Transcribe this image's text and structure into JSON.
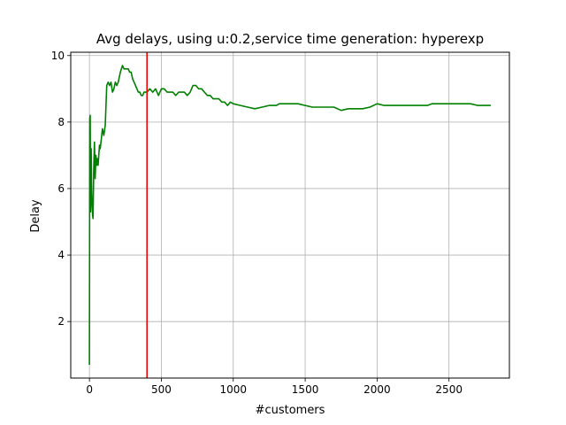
{
  "chart_data": {
    "type": "line",
    "title": "Avg delays, using u:0.2,service time generation: hyperexp",
    "xlabel": "#customers",
    "ylabel": "Delay",
    "xlim": [
      -130,
      2920
    ],
    "ylim": [
      0.3,
      10.1
    ],
    "xticks": [
      0,
      500,
      1000,
      1500,
      2000,
      2500
    ],
    "yticks": [
      2,
      4,
      6,
      8,
      10
    ],
    "grid": true,
    "legend": "none",
    "series": [
      {
        "color": "#008000",
        "x": [
          0,
          2,
          5,
          8,
          12,
          15,
          18,
          22,
          25,
          30,
          35,
          40,
          45,
          50,
          55,
          60,
          70,
          75,
          80,
          90,
          100,
          110,
          120,
          130,
          140,
          150,
          160,
          170,
          180,
          190,
          200,
          215,
          230,
          240,
          250,
          260,
          270,
          280,
          290,
          300,
          310,
          320,
          330,
          340,
          350,
          360,
          370,
          380,
          400,
          420,
          440,
          460,
          480,
          500,
          520,
          540,
          560,
          580,
          600,
          620,
          640,
          660,
          680,
          700,
          720,
          740,
          760,
          780,
          800,
          820,
          840,
          860,
          880,
          900,
          920,
          940,
          960,
          980,
          1000,
          1050,
          1100,
          1150,
          1200,
          1250,
          1300,
          1320,
          1340,
          1400,
          1450,
          1500,
          1550,
          1600,
          1650,
          1700,
          1750,
          1800,
          1850,
          1900,
          1950,
          2000,
          2050,
          2100,
          2150,
          2200,
          2250,
          2300,
          2350,
          2380,
          2400,
          2450,
          2500,
          2550,
          2600,
          2650,
          2700,
          2750,
          2790
        ],
        "y": [
          0.7,
          8.1,
          8.2,
          5.3,
          7.2,
          6.0,
          5.5,
          5.2,
          5.1,
          6.6,
          7.4,
          6.3,
          7.0,
          6.7,
          6.9,
          6.7,
          7.3,
          7.2,
          7.4,
          7.8,
          7.6,
          7.9,
          9.1,
          9.2,
          9.1,
          9.2,
          8.9,
          9.0,
          9.2,
          9.1,
          9.2,
          9.5,
          9.7,
          9.6,
          9.6,
          9.6,
          9.6,
          9.5,
          9.5,
          9.3,
          9.2,
          9.1,
          9.0,
          8.9,
          8.9,
          8.8,
          8.8,
          8.9,
          8.9,
          9.0,
          8.9,
          9.0,
          8.8,
          9.0,
          9.0,
          8.9,
          8.9,
          8.9,
          8.8,
          8.9,
          8.9,
          8.9,
          8.8,
          8.9,
          9.1,
          9.1,
          9.0,
          9.0,
          8.9,
          8.8,
          8.8,
          8.7,
          8.7,
          8.7,
          8.6,
          8.6,
          8.5,
          8.6,
          8.55,
          8.5,
          8.45,
          8.4,
          8.45,
          8.5,
          8.5,
          8.55,
          8.55,
          8.55,
          8.55,
          8.5,
          8.45,
          8.45,
          8.45,
          8.45,
          8.35,
          8.4,
          8.4,
          8.4,
          8.45,
          8.55,
          8.5,
          8.5,
          8.5,
          8.5,
          8.5,
          8.5,
          8.5,
          8.55,
          8.55,
          8.55,
          8.55,
          8.55,
          8.55,
          8.55,
          8.5,
          8.5,
          8.5
        ]
      },
      {
        "color": "#ff0000",
        "x": [
          400,
          400
        ],
        "y": [
          0.3,
          10.1
        ]
      }
    ]
  }
}
